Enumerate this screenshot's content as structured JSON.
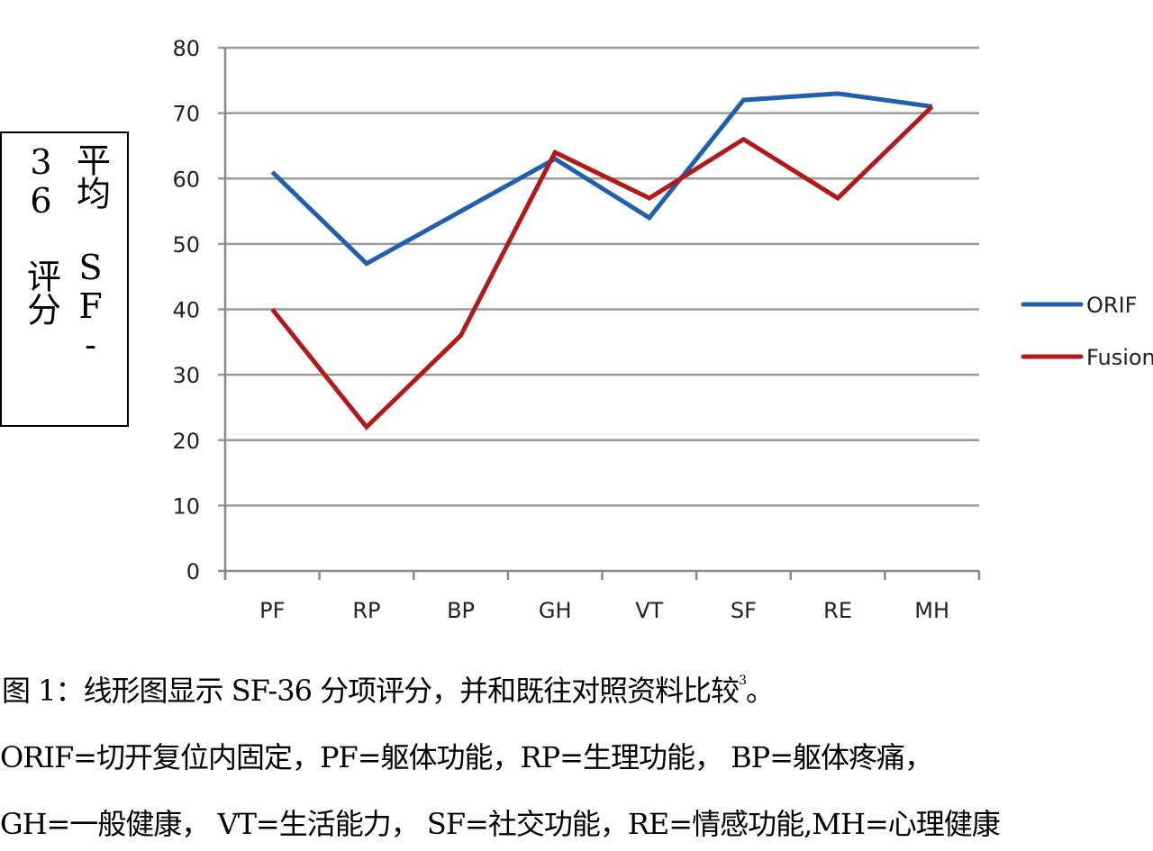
{
  "chart_data": {
    "type": "line",
    "title": "",
    "xlabel": "",
    "ylabel": "平均 SF-36 评分",
    "ylim": [
      0,
      80
    ],
    "yticks": [
      0,
      10,
      20,
      30,
      40,
      50,
      60,
      70,
      80
    ],
    "grid": true,
    "legend_position": "right",
    "categories": [
      "PF",
      "RP",
      "BP",
      "GH",
      "VT",
      "SF",
      "RE",
      "MH"
    ],
    "series": [
      {
        "name": "ORIF",
        "color": "#1f5fae",
        "values": [
          61,
          47,
          55,
          63,
          54,
          72,
          73,
          71
        ]
      },
      {
        "name": "Fusion",
        "color": "#b21a1a",
        "values": [
          40,
          22,
          36,
          64,
          57,
          66,
          57,
          71
        ]
      }
    ]
  },
  "ylabel_box": {
    "text": "平均 SF-36 评分"
  },
  "caption": {
    "line1": "图 1：线形图显示 SF-36 分项评分，并和既往对照资料比较",
    "line1_ref": "3",
    "line1_end": "。",
    "line2": "ORIF=切开复位内固定，PF=躯体功能，RP=生理功能， BP=躯体疼痛，",
    "line3": "GH=一般健康， VT=生活能力， SF=社交功能，RE=情感功能,MH=心理健康"
  }
}
